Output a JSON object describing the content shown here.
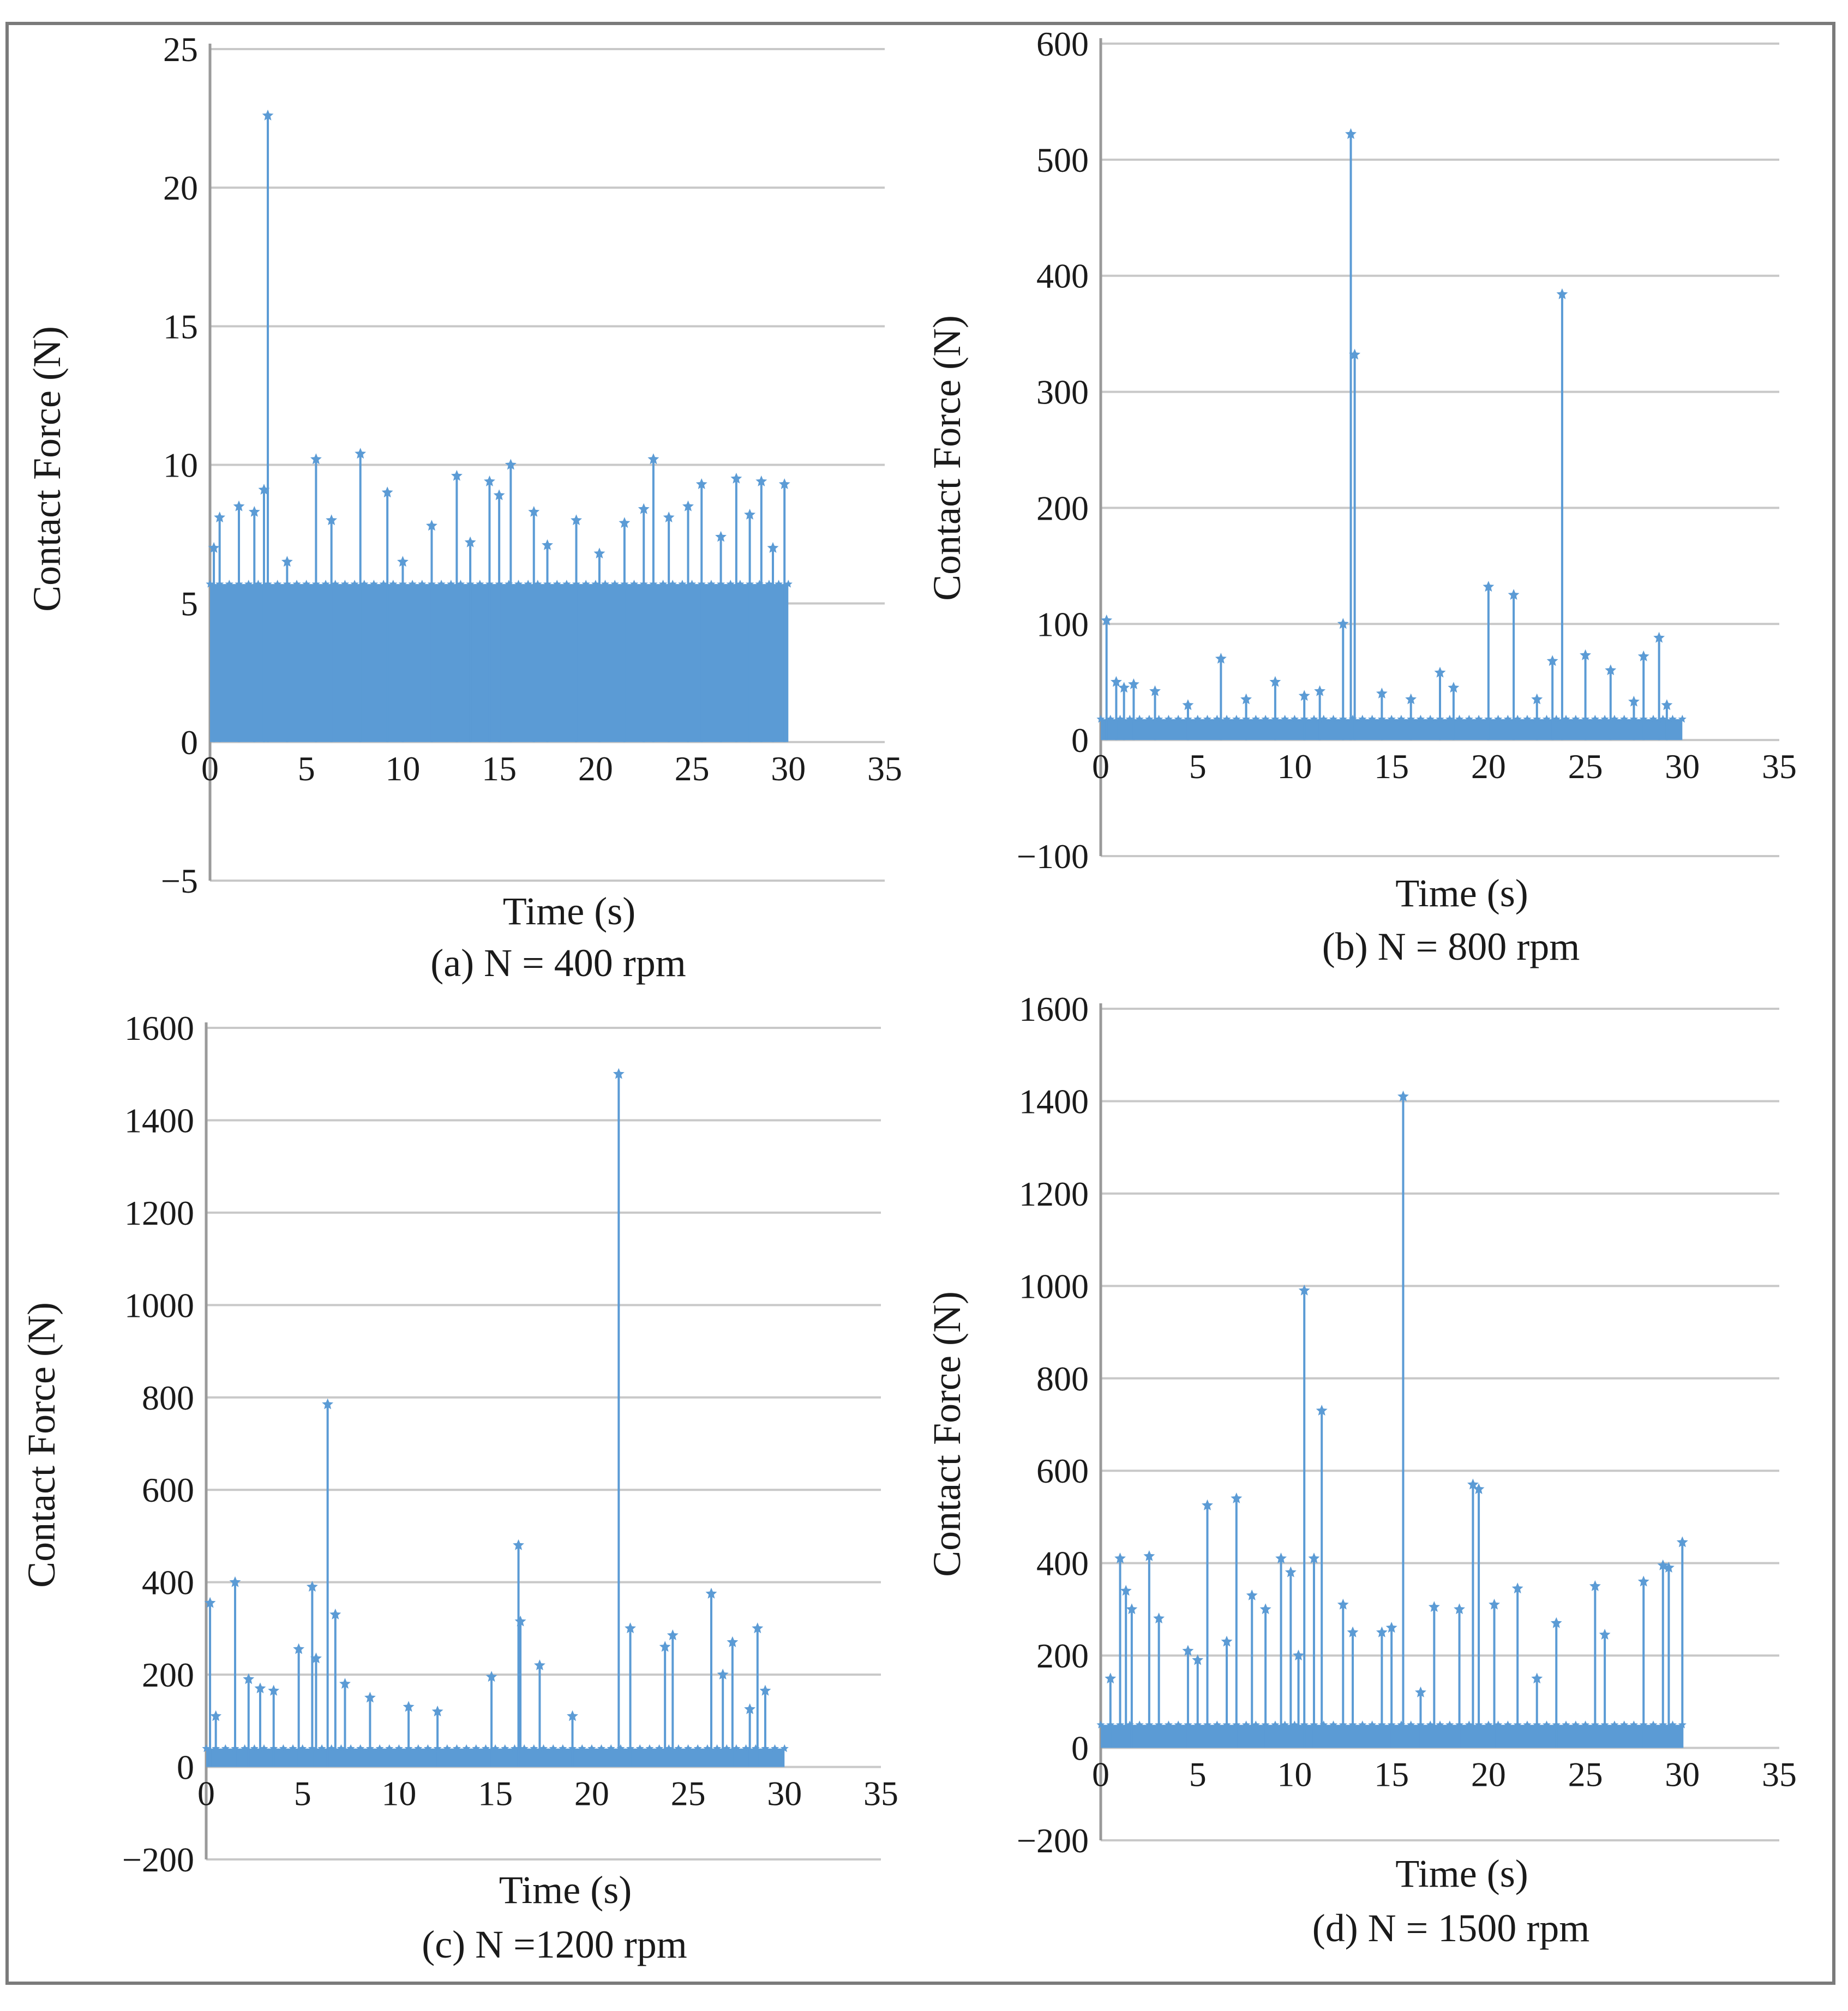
{
  "figure": {
    "panels": [
      {
        "caption": "(a) N = 400 rpm"
      },
      {
        "caption": "(b) N = 800 rpm"
      },
      {
        "caption": "(c) N =1200 rpm"
      },
      {
        "caption": "(d) N = 1500 rpm"
      }
    ]
  },
  "chart_data": [
    {
      "type": "scatter",
      "style": "stem",
      "caption": "(a) N = 400 rpm",
      "xlabel": "Time (s)",
      "ylabel": "Contact Force (N)",
      "xlim": [
        0,
        35
      ],
      "ylim": [
        -5,
        25
      ],
      "xticks": [
        0,
        5,
        10,
        15,
        20,
        25,
        30,
        35
      ],
      "yticks": [
        -5,
        0,
        5,
        10,
        15,
        20,
        25
      ],
      "tick_labels_y": [
        "−5",
        "0",
        "5",
        "10",
        "15",
        "20",
        "25"
      ],
      "dense_band": {
        "x": [
          0,
          30
        ],
        "y": [
          0,
          5.7
        ]
      },
      "series": [
        {
          "name": "Contact Force",
          "x": [
            0.2,
            0.5,
            1.5,
            2.3,
            2.8,
            3.0,
            4.0,
            5.5,
            6.3,
            7.8,
            9.2,
            10.0,
            11.5,
            12.8,
            13.5,
            14.5,
            15.0,
            15.6,
            16.8,
            17.5,
            19.0,
            20.2,
            21.5,
            22.5,
            23.0,
            23.8,
            24.8,
            25.5,
            26.5,
            27.3,
            28.0,
            28.6,
            29.2,
            29.8
          ],
          "y": [
            7.0,
            8.1,
            8.5,
            8.3,
            9.1,
            22.6,
            6.5,
            10.2,
            8.0,
            10.4,
            9.0,
            6.5,
            7.8,
            9.6,
            7.2,
            9.4,
            8.9,
            10.0,
            8.3,
            7.1,
            8.0,
            6.8,
            7.9,
            8.4,
            10.2,
            8.1,
            8.5,
            9.3,
            7.4,
            9.5,
            8.2,
            9.4,
            7.0,
            9.3
          ]
        }
      ]
    },
    {
      "type": "scatter",
      "style": "stem",
      "caption": "(b) N = 800 rpm",
      "xlabel": "Time (s)",
      "ylabel": "Contact Force (N)",
      "xlim": [
        0,
        35
      ],
      "ylim": [
        -100,
        600
      ],
      "xticks": [
        0,
        5,
        10,
        15,
        20,
        25,
        30,
        35
      ],
      "yticks": [
        -100,
        0,
        100,
        200,
        300,
        400,
        500,
        600
      ],
      "tick_labels_y": [
        "−100",
        "0",
        "100",
        "200",
        "300",
        "400",
        "500",
        "600"
      ],
      "dense_band": {
        "x": [
          0,
          30
        ],
        "y": [
          0,
          18
        ]
      },
      "series": [
        {
          "name": "Contact Force",
          "x": [
            0.3,
            0.8,
            1.2,
            1.7,
            2.8,
            4.5,
            6.2,
            7.5,
            9.0,
            10.5,
            11.3,
            12.5,
            12.9,
            13.1,
            14.5,
            16.0,
            17.5,
            18.2,
            20.0,
            21.3,
            22.5,
            23.3,
            23.8,
            25.0,
            26.3,
            27.5,
            28.0,
            28.8,
            29.2
          ],
          "y": [
            103,
            50,
            45,
            48,
            42,
            30,
            70,
            35,
            50,
            38,
            42,
            100,
            522,
            332,
            40,
            35,
            58,
            45,
            132,
            125,
            35,
            68,
            384,
            73,
            60,
            33,
            72,
            88,
            30
          ]
        }
      ]
    },
    {
      "type": "scatter",
      "style": "stem",
      "caption": "(c) N =1200 rpm",
      "xlabel": "Time (s)",
      "ylabel": "Contact Force (N)",
      "xlim": [
        0,
        35
      ],
      "ylim": [
        -200,
        1600
      ],
      "xticks": [
        0,
        5,
        10,
        15,
        20,
        25,
        30,
        35
      ],
      "yticks": [
        -200,
        0,
        200,
        400,
        600,
        800,
        1000,
        1200,
        1400,
        1600
      ],
      "tick_labels_y": [
        "−200",
        "0",
        "200",
        "400",
        "600",
        "800",
        "1000",
        "1200",
        "1400",
        "1600"
      ],
      "dense_band": {
        "x": [
          0,
          30
        ],
        "y": [
          0,
          40
        ]
      },
      "series": [
        {
          "name": "Contact Force",
          "x": [
            0.2,
            0.5,
            1.5,
            2.2,
            2.8,
            3.5,
            4.8,
            5.5,
            5.7,
            6.3,
            6.7,
            7.2,
            8.5,
            10.5,
            12.0,
            14.8,
            16.2,
            16.3,
            17.3,
            19.0,
            21.4,
            22.0,
            23.8,
            24.2,
            26.2,
            26.8,
            27.3,
            28.2,
            28.6,
            29.0
          ],
          "y": [
            355,
            110,
            400,
            190,
            170,
            165,
            255,
            390,
            235,
            785,
            330,
            180,
            150,
            130,
            120,
            195,
            480,
            315,
            220,
            110,
            1500,
            300,
            260,
            285,
            375,
            200,
            270,
            125,
            300,
            165
          ]
        }
      ]
    },
    {
      "type": "scatter",
      "style": "stem",
      "caption": "(d) N = 1500 rpm",
      "xlabel": "Time (s)",
      "ylabel": "Contact Force (N)",
      "xlim": [
        0,
        35
      ],
      "ylim": [
        -200,
        1600
      ],
      "xticks": [
        0,
        5,
        10,
        15,
        20,
        25,
        30,
        35
      ],
      "yticks": [
        -200,
        0,
        200,
        400,
        600,
        800,
        1000,
        1200,
        1400,
        1600
      ],
      "tick_labels_y": [
        "−200",
        "0",
        "200",
        "400",
        "600",
        "800",
        "1000",
        "1200",
        "1400",
        "1600"
      ],
      "dense_band": {
        "x": [
          0,
          30
        ],
        "y": [
          0,
          50
        ]
      },
      "series": [
        {
          "name": "Contact Force",
          "x": [
            0.5,
            1.0,
            1.3,
            1.6,
            2.5,
            3.0,
            4.5,
            5.0,
            5.5,
            6.5,
            7.0,
            7.8,
            8.5,
            9.3,
            9.8,
            10.2,
            10.5,
            11.0,
            11.4,
            12.5,
            13.0,
            14.5,
            15.0,
            15.6,
            16.5,
            17.2,
            18.5,
            19.2,
            19.5,
            20.3,
            21.5,
            22.5,
            23.5,
            25.5,
            26.0,
            28.0,
            29.0,
            29.3,
            30.0
          ],
          "y": [
            150,
            410,
            340,
            300,
            415,
            280,
            210,
            190,
            525,
            230,
            540,
            330,
            300,
            410,
            380,
            200,
            990,
            410,
            730,
            310,
            250,
            250,
            260,
            1410,
            120,
            305,
            300,
            570,
            560,
            310,
            345,
            150,
            270,
            350,
            245,
            360,
            395,
            390,
            445
          ]
        }
      ]
    }
  ]
}
